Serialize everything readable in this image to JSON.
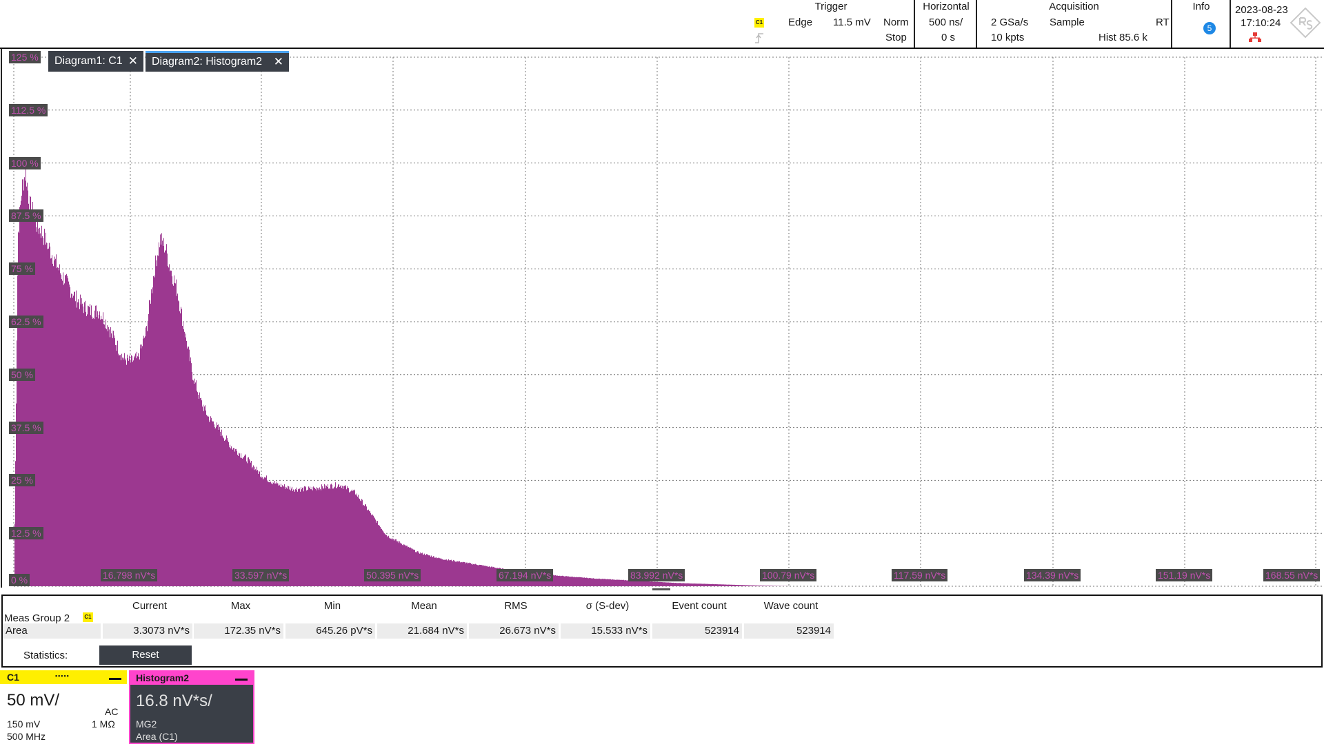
{
  "topbar": {
    "trigger": {
      "title": "Trigger",
      "source_badge": "C1",
      "type": "Edge",
      "level": "11.5 mV",
      "mode": "Norm",
      "state": "Stop"
    },
    "horizontal": {
      "title": "Horizontal",
      "scale": "500 ns/",
      "position": "0 s"
    },
    "acquisition": {
      "title": "Acquisition",
      "rate": "2 GSa/s",
      "mode": "Sample",
      "realtime": "RT",
      "points": "10 kpts",
      "hist": "Hist 85.6 k"
    },
    "info": {
      "title": "Info",
      "count": "5"
    },
    "datetime": {
      "date": "2023-08-23",
      "time": "17:10:24"
    },
    "icons": {
      "trigger_edge": "rising-edge-icon",
      "network": "network-icon",
      "logo": "rs-logo"
    }
  },
  "tabs": [
    {
      "label": "Diagram1: C1",
      "active": false
    },
    {
      "label": "Diagram2: Histogram2",
      "active": true
    }
  ],
  "chart_data": {
    "type": "bar",
    "color": "#9c3890",
    "y_tick_labels": [
      "125 %",
      "112.5 %",
      "100 %",
      "87.5 %",
      "75 %",
      "62.5 %",
      "50 %",
      "37.5 %",
      "25 %",
      "12.5 %",
      "0 %"
    ],
    "x_tick_labels": [
      "16.798 nV*s",
      "33.597 nV*s",
      "50.395 nV*s",
      "67.194 nV*s",
      "83.992 nV*s",
      "100.79 nV*s",
      "117.59 nV*s",
      "134.39 nV*s",
      "151.19 nV*s",
      "168.55 nV*s"
    ],
    "ylim": [
      0,
      125
    ],
    "xlim": [
      0,
      168.55
    ],
    "profile_x": [
      0,
      0.5,
      1.0,
      1.5,
      2.0,
      2.5,
      3.0,
      3.5,
      4.0,
      5.0,
      6.0,
      7.0,
      8.0,
      9.0,
      10.0,
      11.0,
      12.0,
      13.0,
      14.0,
      15.0,
      16.0,
      17.0,
      18.0,
      18.8,
      19.5,
      20.0,
      21.0,
      22.0,
      23.0,
      24.0,
      25.0,
      26.0,
      28.0,
      30.0,
      32.0,
      34.0,
      36.0,
      38.0,
      40.0,
      42.0,
      43.0,
      44.0,
      46.0,
      48.0,
      50.0,
      52.0,
      55.0,
      60.0,
      65.0,
      70.0,
      75.0,
      80.0,
      85.0,
      90.0,
      95.0,
      100.0,
      168.55
    ],
    "profile_y": [
      0,
      83,
      94,
      98,
      90,
      88,
      85,
      84,
      82,
      78,
      74,
      71,
      68,
      66,
      65,
      65,
      62,
      58,
      54,
      53,
      54,
      60,
      74,
      82,
      80,
      76,
      70,
      60,
      50,
      44,
      40,
      38,
      33,
      30,
      26,
      24,
      23,
      23,
      23.5,
      24,
      23,
      22,
      17,
      12,
      10,
      8,
      6.5,
      5,
      3.5,
      2.5,
      1.8,
      1.3,
      0.8,
      0.5,
      0.2,
      0,
      0
    ]
  },
  "measurements": {
    "group": "Meas Group 2",
    "group_badge": "C1",
    "row_label": "Area",
    "headers": [
      "Current",
      "Max",
      "Min",
      "Mean",
      "RMS",
      "σ (S-dev)",
      "Event count",
      "Wave count"
    ],
    "values": [
      "3.3073 nV*s",
      "172.35 nV*s",
      "645.26 pV*s",
      "21.684 nV*s",
      "26.673 nV*s",
      "15.533 nV*s",
      "523914",
      "523914"
    ],
    "statistics_label": "Statistics:",
    "reset_label": "Reset"
  },
  "channels": {
    "c1": {
      "name": "C1",
      "scale": "50 mV/",
      "coupling": "AC",
      "offset": "150 mV",
      "impedance": "1 MΩ",
      "bandwidth": "500 MHz",
      "color": "#ffef00"
    },
    "histogram": {
      "name": "Histogram2",
      "scale": "16.8 nV*s/",
      "source": "MG2",
      "param": "Area (C1)",
      "color": "#ff44cc"
    }
  }
}
